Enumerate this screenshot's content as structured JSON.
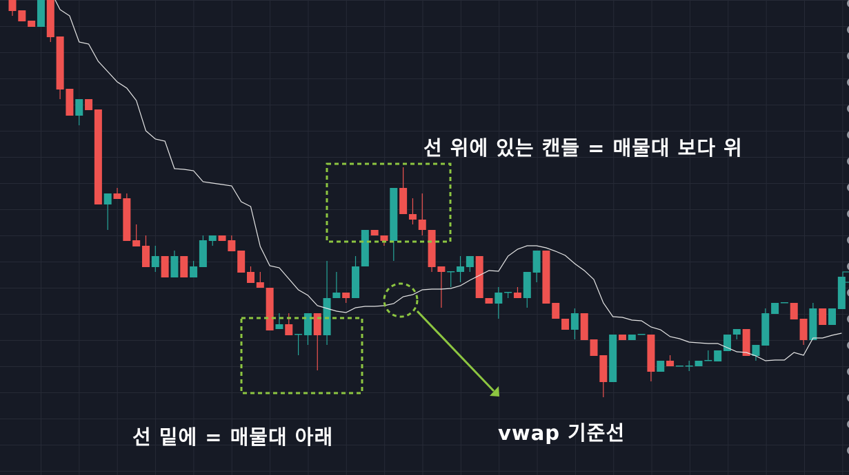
{
  "colors": {
    "background": "#161a25",
    "grid": "#262a36",
    "up": "#26a69a",
    "down": "#ef5350",
    "vwap": "#e6e6e6",
    "annotation": "#8dc641",
    "text": "#ffffff"
  },
  "annotations": {
    "above_label": "선 위에 있는 캔들 = 매물대 보다 위",
    "below_label": "선 밑에 = 매물대 아래",
    "vwap_label": "vwap 기준선"
  },
  "chart_data": {
    "type": "candlestick",
    "title": "",
    "xlabel": "",
    "ylabel": "",
    "grid": true,
    "ylim": [
      0,
      700
    ],
    "ohlc_fields": [
      "open",
      "high",
      "low",
      "close"
    ],
    "candles": [
      [
        700,
        700,
        677,
        684
      ],
      [
        685,
        685,
        669,
        669
      ],
      [
        670,
        670,
        661,
        661
      ],
      [
        661,
        700,
        661,
        700
      ],
      [
        700,
        700,
        639,
        646
      ],
      [
        647,
        647,
        556,
        570
      ],
      [
        571,
        571,
        532,
        532
      ],
      [
        532,
        556,
        518,
        556
      ],
      [
        556,
        556,
        540,
        540
      ],
      [
        541,
        541,
        403,
        403
      ],
      [
        403,
        419,
        366,
        419
      ],
      [
        419,
        427,
        411,
        411
      ],
      [
        412,
        419,
        350,
        350
      ],
      [
        351,
        374,
        342,
        342
      ],
      [
        343,
        358,
        312,
        312
      ],
      [
        312,
        343,
        305,
        328
      ],
      [
        328,
        328,
        297,
        297
      ],
      [
        297,
        336,
        297,
        328
      ],
      [
        328,
        328,
        297,
        297
      ],
      [
        297,
        321,
        297,
        313
      ],
      [
        312,
        358,
        312,
        351
      ],
      [
        350,
        358,
        343,
        358
      ],
      [
        358,
        358,
        350,
        350
      ],
      [
        351,
        358,
        335,
        335
      ],
      [
        336,
        336,
        304,
        304
      ],
      [
        305,
        313,
        289,
        289
      ],
      [
        290,
        305,
        282,
        282
      ],
      [
        282,
        282,
        220,
        220
      ],
      [
        222,
        245,
        222,
        229
      ],
      [
        229,
        245,
        213,
        213
      ],
      [
        214,
        215,
        184,
        215
      ],
      [
        213,
        245,
        199,
        245
      ],
      [
        245,
        245,
        162,
        213
      ],
      [
        213,
        321,
        199,
        267
      ],
      [
        267,
        305,
        267,
        275
      ],
      [
        275,
        275,
        260,
        267
      ],
      [
        267,
        328,
        267,
        313
      ],
      [
        313,
        366,
        313,
        366
      ],
      [
        366,
        366,
        358,
        358
      ],
      [
        358,
        358,
        343,
        350
      ],
      [
        350,
        427,
        321,
        427
      ],
      [
        427,
        457,
        389,
        389
      ],
      [
        389,
        412,
        374,
        381
      ],
      [
        381,
        419,
        358,
        366
      ],
      [
        366,
        366,
        305,
        312
      ],
      [
        313,
        313,
        253,
        305
      ],
      [
        305,
        306,
        283,
        306
      ],
      [
        305,
        328,
        290,
        313
      ],
      [
        312,
        328,
        305,
        328
      ],
      [
        328,
        328,
        267,
        267
      ],
      [
        267,
        267,
        259,
        259
      ],
      [
        259,
        283,
        237,
        275
      ],
      [
        275,
        276,
        267,
        276
      ],
      [
        275,
        283,
        267,
        267
      ],
      [
        267,
        305,
        253,
        305
      ],
      [
        304,
        336,
        290,
        336
      ],
      [
        336,
        336,
        259,
        259
      ],
      [
        260,
        260,
        237,
        237
      ],
      [
        237,
        237,
        221,
        221
      ],
      [
        221,
        252,
        207,
        245
      ],
      [
        245,
        245,
        206,
        206
      ],
      [
        207,
        207,
        183,
        183
      ],
      [
        184,
        184,
        123,
        145
      ],
      [
        145,
        214,
        145,
        214
      ],
      [
        214,
        214,
        206,
        206
      ],
      [
        206,
        214,
        206,
        214
      ],
      [
        214,
        215,
        214,
        215
      ],
      [
        214,
        214,
        146,
        160
      ],
      [
        160,
        176,
        160,
        176
      ],
      [
        176,
        184,
        168,
        168
      ],
      [
        168,
        169,
        168,
        169
      ],
      [
        168,
        176,
        161,
        169
      ],
      [
        168,
        176,
        168,
        176
      ],
      [
        176,
        191,
        176,
        177
      ],
      [
        175,
        191,
        175,
        191
      ],
      [
        190,
        214,
        190,
        214
      ],
      [
        214,
        222,
        207,
        222
      ],
      [
        222,
        222,
        183,
        183
      ],
      [
        183,
        199,
        176,
        199
      ],
      [
        198,
        252,
        198,
        245
      ],
      [
        244,
        260,
        244,
        260
      ],
      [
        260,
        261,
        260,
        261
      ],
      [
        260,
        260,
        236,
        236
      ],
      [
        237,
        237,
        199,
        206
      ],
      [
        206,
        260,
        206,
        252
      ],
      [
        252,
        252,
        228,
        228
      ],
      [
        228,
        252,
        228,
        252
      ],
      [
        251,
        298,
        251,
        298
      ]
    ],
    "vwap": [
      null,
      null,
      null,
      null,
      null,
      686,
      677,
      639,
      636,
      611,
      596,
      581,
      572,
      554,
      510,
      498,
      495,
      455,
      454,
      452,
      436,
      434,
      432,
      430,
      407,
      400,
      342,
      314,
      311,
      295,
      279,
      271,
      256,
      252,
      248,
      246,
      253,
      255,
      255,
      256,
      259,
      269,
      272,
      279,
      280,
      280,
      281,
      285,
      293,
      300,
      307,
      306,
      328,
      338,
      343,
      343,
      340,
      335,
      329,
      317,
      307,
      294,
      260,
      240,
      239,
      235,
      234,
      225,
      221,
      211,
      208,
      203,
      202,
      201,
      201,
      195,
      189,
      188,
      183,
      176,
      177,
      177,
      188,
      184,
      209,
      209,
      213,
      216
    ]
  }
}
